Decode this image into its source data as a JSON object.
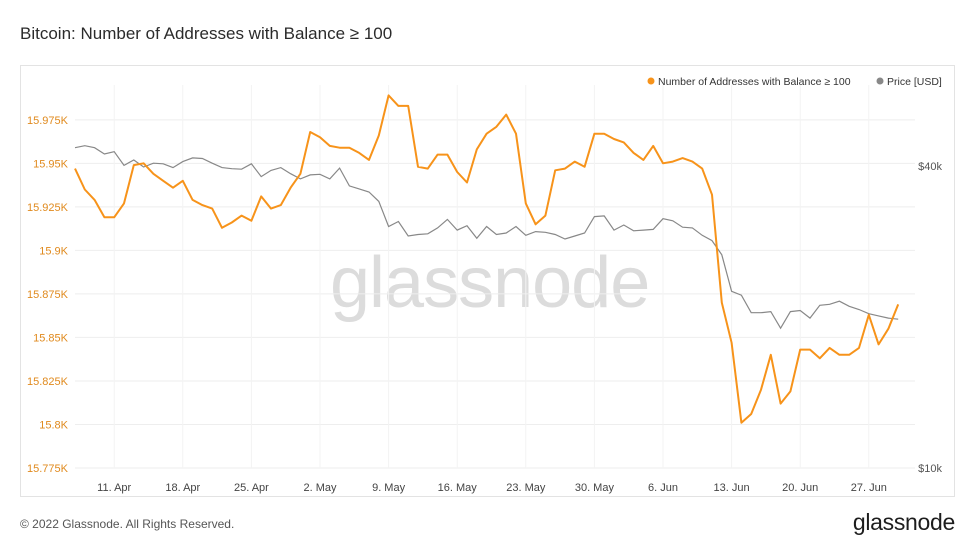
{
  "header": {
    "title": "Bitcoin: Number of Addresses with Balance ≥ 100"
  },
  "footer": {
    "copyright": "© 2022 Glassnode. All Rights Reserved.",
    "logo_text": "glassnode"
  },
  "watermark": "glassnode",
  "colors": {
    "primary": "#f7931a",
    "secondary": "#888888",
    "axis_left": "#e08a1e",
    "axis_right": "#555555"
  },
  "chart_data": {
    "type": "line",
    "legend": {
      "placement": "top-right",
      "entries": [
        "Number of Addresses with Balance ≥ 100",
        "Price [USD]"
      ]
    },
    "x_ticks": [
      "11. Apr",
      "18. Apr",
      "25. Apr",
      "2. May",
      "9. May",
      "16. May",
      "23. May",
      "30. May",
      "6. Jun",
      "13. Jun",
      "20. Jun",
      "27. Jun"
    ],
    "x_start": "2022-04-07",
    "y_left": {
      "ylim": [
        15775,
        15995
      ],
      "ticks": [
        15775,
        15800,
        15825,
        15850,
        15875,
        15900,
        15925,
        15950,
        15975
      ],
      "tick_labels": [
        "15.775K",
        "15.8K",
        "15.825K",
        "15.85K",
        "15.875K",
        "15.9K",
        "15.925K",
        "15.95K",
        "15.975K"
      ]
    },
    "y_right": {
      "scale": "log",
      "ylim": [
        10000,
        58000
      ],
      "ticks": [
        10000,
        40000
      ],
      "tick_labels": [
        "$10k",
        "$40k"
      ]
    },
    "series": [
      {
        "name": "Number of Addresses with Balance ≥ 100",
        "x": [
          "2022-04-07",
          "2022-04-08",
          "2022-04-09",
          "2022-04-10",
          "2022-04-11",
          "2022-04-12",
          "2022-04-13",
          "2022-04-14",
          "2022-04-15",
          "2022-04-16",
          "2022-04-17",
          "2022-04-18",
          "2022-04-19",
          "2022-04-20",
          "2022-04-21",
          "2022-04-22",
          "2022-04-23",
          "2022-04-24",
          "2022-04-25",
          "2022-04-26",
          "2022-04-27",
          "2022-04-28",
          "2022-04-29",
          "2022-04-30",
          "2022-05-01",
          "2022-05-02",
          "2022-05-03",
          "2022-05-04",
          "2022-05-05",
          "2022-05-06",
          "2022-05-07",
          "2022-05-08",
          "2022-05-09",
          "2022-05-10",
          "2022-05-11",
          "2022-05-12",
          "2022-05-13",
          "2022-05-14",
          "2022-05-15",
          "2022-05-16",
          "2022-05-17",
          "2022-05-18",
          "2022-05-19",
          "2022-05-20",
          "2022-05-21",
          "2022-05-22",
          "2022-05-23",
          "2022-05-24",
          "2022-05-25",
          "2022-05-26",
          "2022-05-27",
          "2022-05-28",
          "2022-05-29",
          "2022-05-30",
          "2022-05-31",
          "2022-06-01",
          "2022-06-02",
          "2022-06-03",
          "2022-06-04",
          "2022-06-05",
          "2022-06-06",
          "2022-06-07",
          "2022-06-08",
          "2022-06-09",
          "2022-06-10",
          "2022-06-11",
          "2022-06-12",
          "2022-06-13",
          "2022-06-14",
          "2022-06-15",
          "2022-06-16",
          "2022-06-17",
          "2022-06-18",
          "2022-06-19",
          "2022-06-20",
          "2022-06-21",
          "2022-06-22",
          "2022-06-23",
          "2022-06-24",
          "2022-06-25",
          "2022-06-26",
          "2022-06-27",
          "2022-06-28",
          "2022-06-29",
          "2022-06-30"
        ],
        "values": [
          15947,
          15935,
          15929,
          15919,
          15919,
          15927,
          15949,
          15950,
          15944,
          15940,
          15936,
          15940,
          15929,
          15926,
          15924,
          15913,
          15916,
          15920,
          15917,
          15931,
          15924,
          15926,
          15936,
          15944,
          15968,
          15965,
          15960,
          15959,
          15959,
          15956,
          15952,
          15966,
          15989,
          15983,
          15983,
          15948,
          15947,
          15955,
          15955,
          15945,
          15939,
          15958,
          15967,
          15971,
          15978,
          15967,
          15927,
          15915,
          15920,
          15946,
          15947,
          15951,
          15948,
          15967,
          15967,
          15964,
          15962,
          15956,
          15952,
          15960,
          15950,
          15951,
          15953,
          15951,
          15947,
          15932,
          15870,
          15847,
          15801,
          15806,
          15820,
          15840,
          15812,
          15819,
          15843,
          15843,
          15838,
          15844,
          15840,
          15840,
          15844,
          15863,
          15846,
          15855,
          15869
        ]
      },
      {
        "name": "Price [USD]",
        "x": [
          "2022-04-07",
          "2022-04-08",
          "2022-04-09",
          "2022-04-10",
          "2022-04-11",
          "2022-04-12",
          "2022-04-13",
          "2022-04-14",
          "2022-04-15",
          "2022-04-16",
          "2022-04-17",
          "2022-04-18",
          "2022-04-19",
          "2022-04-20",
          "2022-04-21",
          "2022-04-22",
          "2022-04-23",
          "2022-04-24",
          "2022-04-25",
          "2022-04-26",
          "2022-04-27",
          "2022-04-28",
          "2022-04-29",
          "2022-04-30",
          "2022-05-01",
          "2022-05-02",
          "2022-05-03",
          "2022-05-04",
          "2022-05-05",
          "2022-05-06",
          "2022-05-07",
          "2022-05-08",
          "2022-05-09",
          "2022-05-10",
          "2022-05-11",
          "2022-05-12",
          "2022-05-13",
          "2022-05-14",
          "2022-05-15",
          "2022-05-16",
          "2022-05-17",
          "2022-05-18",
          "2022-05-19",
          "2022-05-20",
          "2022-05-21",
          "2022-05-22",
          "2022-05-23",
          "2022-05-24",
          "2022-05-25",
          "2022-05-26",
          "2022-05-27",
          "2022-05-28",
          "2022-05-29",
          "2022-05-30",
          "2022-05-31",
          "2022-06-01",
          "2022-06-02",
          "2022-06-03",
          "2022-06-04",
          "2022-06-05",
          "2022-06-06",
          "2022-06-07",
          "2022-06-08",
          "2022-06-09",
          "2022-06-10",
          "2022-06-11",
          "2022-06-12",
          "2022-06-13",
          "2022-06-14",
          "2022-06-15",
          "2022-06-16",
          "2022-06-17",
          "2022-06-18",
          "2022-06-19",
          "2022-06-20",
          "2022-06-21",
          "2022-06-22",
          "2022-06-23",
          "2022-06-24",
          "2022-06-25",
          "2022-06-26",
          "2022-06-27",
          "2022-06-28",
          "2022-06-29",
          "2022-06-30"
        ],
        "values": [
          43500,
          43900,
          43500,
          42250,
          42700,
          40100,
          41100,
          39800,
          40500,
          40400,
          39700,
          40800,
          41500,
          41400,
          40500,
          39700,
          39500,
          39400,
          40400,
          38100,
          39200,
          39700,
          38600,
          37700,
          38400,
          38500,
          37700,
          39600,
          36500,
          36000,
          35500,
          34000,
          30300,
          31000,
          29000,
          29200,
          29300,
          30100,
          31300,
          29800,
          30400,
          28700,
          30300,
          29200,
          29400,
          30300,
          29100,
          29600,
          29500,
          29200,
          28600,
          29000,
          29400,
          31700,
          31800,
          29800,
          30500,
          29700,
          29800,
          29900,
          31400,
          31100,
          30200,
          30100,
          29100,
          28400,
          26600,
          22500,
          22100,
          20400,
          20400,
          20500,
          19000,
          20500,
          20600,
          19900,
          21100,
          21200,
          21500,
          21000,
          20700,
          20300,
          20100,
          19900,
          19800
        ]
      }
    ]
  }
}
